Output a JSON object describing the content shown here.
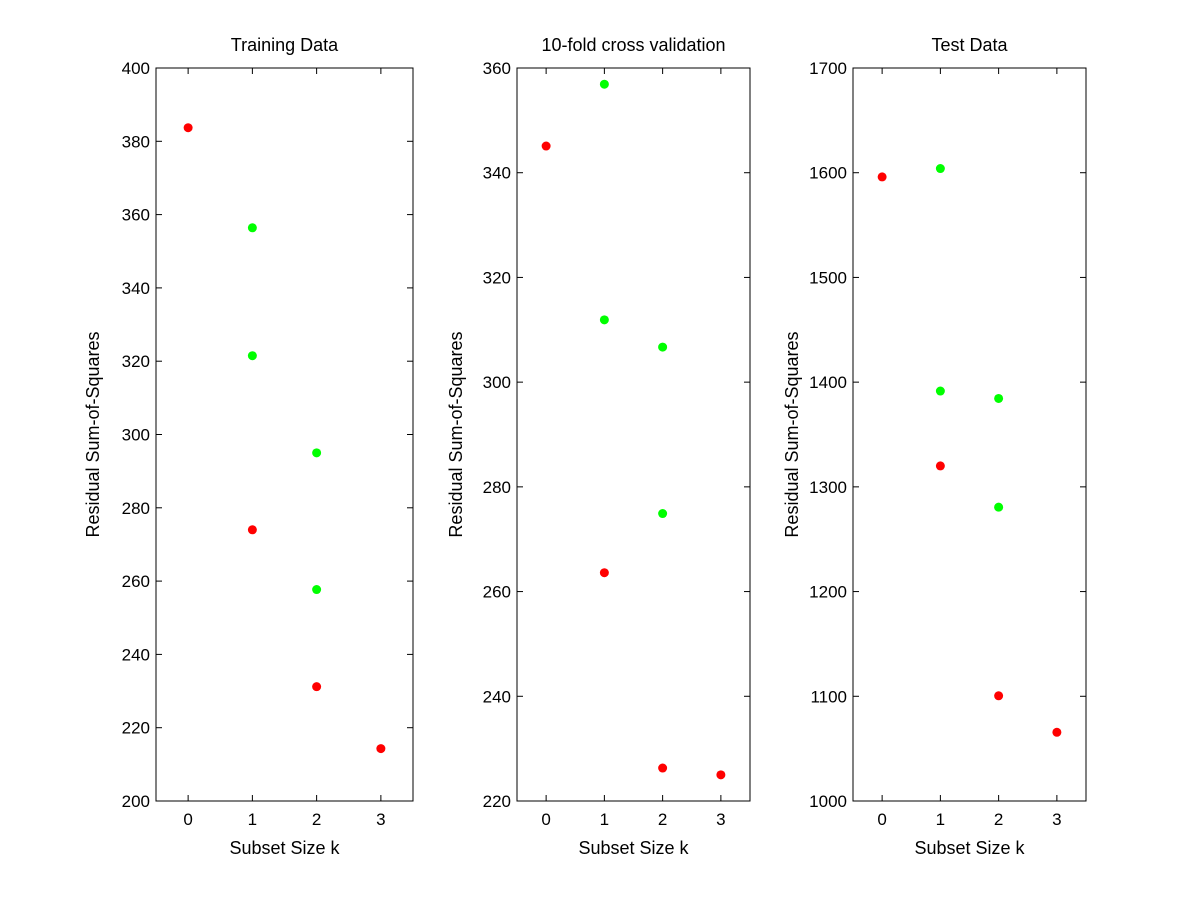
{
  "colors": {
    "background": "#ffffff",
    "axes": "#000000",
    "red": "#ff0000",
    "green": "#00ff00"
  },
  "chart_data": [
    {
      "type": "scatter",
      "title": "Training Data",
      "xlabel": "Subset Size k",
      "ylabel": "Residual Sum-of-Squares",
      "xlim": [
        -0.5,
        3.5
      ],
      "ylim": [
        200,
        400
      ],
      "xticks": [
        0,
        1,
        2,
        3
      ],
      "xtick_labels": [
        "0",
        "1",
        "2",
        "3"
      ],
      "yticks": [
        200,
        220,
        240,
        260,
        280,
        300,
        320,
        340,
        360,
        380,
        400
      ],
      "ytick_labels": [
        "200",
        "220",
        "240",
        "260",
        "280",
        "300",
        "320",
        "340",
        "360",
        "380",
        "400"
      ],
      "grid": false,
      "series": [
        {
          "color": "red",
          "points": [
            {
              "x": 0,
              "y": 383.7
            },
            {
              "x": 1,
              "y": 274.0
            },
            {
              "x": 2,
              "y": 231.2
            },
            {
              "x": 3,
              "y": 214.3
            }
          ]
        },
        {
          "color": "green",
          "points": [
            {
              "x": 1,
              "y": 356.4
            },
            {
              "x": 1,
              "y": 321.5
            },
            {
              "x": 2,
              "y": 295.0
            },
            {
              "x": 2,
              "y": 257.7
            }
          ]
        }
      ]
    },
    {
      "type": "scatter",
      "title": "10-fold cross validation",
      "xlabel": "Subset Size k",
      "ylabel": "Residual Sum-of-Squares",
      "xlim": [
        -0.5,
        3.5
      ],
      "ylim": [
        220,
        360
      ],
      "xticks": [
        0,
        1,
        2,
        3
      ],
      "xtick_labels": [
        "0",
        "1",
        "2",
        "3"
      ],
      "yticks": [
        220,
        240,
        260,
        280,
        300,
        320,
        340,
        360
      ],
      "ytick_labels": [
        "220",
        "240",
        "260",
        "280",
        "300",
        "320",
        "340",
        "360"
      ],
      "grid": false,
      "series": [
        {
          "color": "red",
          "points": [
            {
              "x": 0,
              "y": 345.1
            },
            {
              "x": 1,
              "y": 263.6
            },
            {
              "x": 2,
              "y": 226.3
            },
            {
              "x": 3,
              "y": 225.0
            }
          ]
        },
        {
          "color": "green",
          "points": [
            {
              "x": 1,
              "y": 356.9
            },
            {
              "x": 1,
              "y": 311.9
            },
            {
              "x": 2,
              "y": 306.7
            },
            {
              "x": 2,
              "y": 274.9
            }
          ]
        }
      ]
    },
    {
      "type": "scatter",
      "title": "Test Data",
      "xlabel": "Subset Size k",
      "ylabel": "Residual Sum-of-Squares",
      "xlim": [
        -0.5,
        3.5
      ],
      "ylim": [
        1000,
        1700
      ],
      "xticks": [
        0,
        1,
        2,
        3
      ],
      "xtick_labels": [
        "0",
        "1",
        "2",
        "3"
      ],
      "yticks": [
        1000,
        1100,
        1200,
        1300,
        1400,
        1500,
        1600,
        1700
      ],
      "ytick_labels": [
        "1000",
        "1100",
        "1200",
        "1300",
        "1400",
        "1500",
        "1600",
        "1700"
      ],
      "grid": false,
      "series": [
        {
          "color": "red",
          "points": [
            {
              "x": 0,
              "y": 1596.0
            },
            {
              "x": 1,
              "y": 1320.0
            },
            {
              "x": 2,
              "y": 1100.5
            },
            {
              "x": 3,
              "y": 1065.6
            }
          ]
        },
        {
          "color": "green",
          "points": [
            {
              "x": 1,
              "y": 1604.0
            },
            {
              "x": 1,
              "y": 1391.5
            },
            {
              "x": 2,
              "y": 1384.4
            },
            {
              "x": 2,
              "y": 1280.6
            }
          ]
        }
      ]
    }
  ]
}
